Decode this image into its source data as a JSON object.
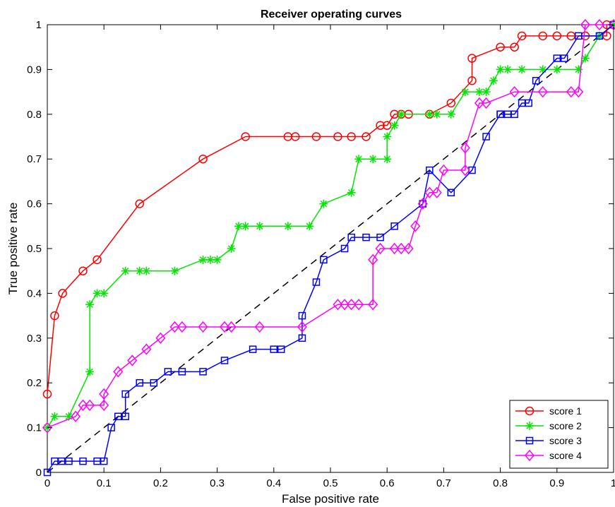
{
  "chart_data": {
    "type": "line",
    "title": "Receiver operating curves",
    "xlabel": "False positive rate",
    "ylabel": "True positive rate",
    "xlim": [
      0,
      1
    ],
    "ylim": [
      0,
      1
    ],
    "xticks": [
      "0",
      "0.1",
      "0.2",
      "0.3",
      "0.4",
      "0.5",
      "0.6",
      "0.7",
      "0.8",
      "0.9",
      "1"
    ],
    "yticks": [
      "0",
      "0.1",
      "0.2",
      "0.3",
      "0.4",
      "0.5",
      "0.6",
      "0.7",
      "0.8",
      "0.9",
      "1"
    ],
    "grid": false,
    "legend_position": "bottom-right",
    "reference_line": {
      "style": "dashed",
      "color": "#000000",
      "x": [
        0,
        1
      ],
      "y": [
        0,
        1
      ]
    },
    "series": [
      {
        "name": "score 1",
        "color": "#ff0000",
        "marker": "circle",
        "x": [
          0,
          0.013,
          0.027,
          0.063,
          0.088,
          0.163,
          0.275,
          0.35,
          0.425,
          0.438,
          0.475,
          0.513,
          0.537,
          0.563,
          0.588,
          0.6,
          0.613,
          0.625,
          0.638,
          0.675,
          0.713,
          0.75,
          0.75,
          0.8,
          0.825,
          0.838,
          0.875,
          0.9,
          0.925,
          0.95,
          0.988,
          0.988,
          1
        ],
        "y": [
          0.175,
          0.35,
          0.4,
          0.45,
          0.475,
          0.6,
          0.7,
          0.75,
          0.75,
          0.75,
          0.75,
          0.75,
          0.75,
          0.75,
          0.775,
          0.775,
          0.8,
          0.8,
          0.8,
          0.8,
          0.825,
          0.875,
          0.925,
          0.95,
          0.95,
          0.975,
          0.975,
          0.975,
          0.975,
          0.975,
          0.975,
          1,
          1
        ]
      },
      {
        "name": "score 2",
        "color": "#00e600",
        "marker": "asterisk",
        "x": [
          0,
          0.013,
          0.038,
          0.075,
          0.075,
          0.088,
          0.1,
          0.138,
          0.163,
          0.175,
          0.225,
          0.275,
          0.288,
          0.3,
          0.325,
          0.338,
          0.35,
          0.375,
          0.425,
          0.463,
          0.488,
          0.537,
          0.55,
          0.575,
          0.6,
          0.6,
          0.613,
          0.625,
          0.675,
          0.688,
          0.713,
          0.738,
          0.763,
          0.775,
          0.788,
          0.8,
          0.813,
          0.838,
          0.875,
          0.9,
          0.938,
          0.95,
          0.975,
          1
        ],
        "y": [
          0.1,
          0.125,
          0.125,
          0.225,
          0.375,
          0.4,
          0.4,
          0.45,
          0.45,
          0.45,
          0.45,
          0.475,
          0.475,
          0.475,
          0.5,
          0.55,
          0.55,
          0.55,
          0.55,
          0.55,
          0.6,
          0.625,
          0.7,
          0.7,
          0.7,
          0.75,
          0.775,
          0.8,
          0.8,
          0.8,
          0.8,
          0.85,
          0.85,
          0.85,
          0.875,
          0.9,
          0.9,
          0.9,
          0.9,
          0.9,
          0.9,
          0.925,
          0.975,
          1
        ]
      },
      {
        "name": "score 3",
        "color": "#0000ff",
        "marker": "square",
        "x": [
          0,
          0.013,
          0.025,
          0.038,
          0.063,
          0.088,
          0.1,
          0.113,
          0.125,
          0.138,
          0.138,
          0.163,
          0.188,
          0.213,
          0.238,
          0.275,
          0.313,
          0.363,
          0.4,
          0.413,
          0.45,
          0.45,
          0.475,
          0.488,
          0.525,
          0.537,
          0.563,
          0.588,
          0.613,
          0.663,
          0.675,
          0.713,
          0.75,
          0.775,
          0.8,
          0.8,
          0.813,
          0.825,
          0.838,
          0.85,
          0.863,
          0.9,
          0.913,
          0.938,
          0.975,
          1
        ],
        "y": [
          0,
          0.025,
          0.025,
          0.025,
          0.025,
          0.025,
          0.025,
          0.1,
          0.125,
          0.125,
          0.175,
          0.2,
          0.2,
          0.225,
          0.225,
          0.225,
          0.25,
          0.275,
          0.275,
          0.275,
          0.3,
          0.35,
          0.425,
          0.475,
          0.5,
          0.525,
          0.525,
          0.525,
          0.55,
          0.6,
          0.675,
          0.625,
          0.675,
          0.75,
          0.8,
          0.8,
          0.8,
          0.8,
          0.825,
          0.825,
          0.875,
          0.925,
          0.925,
          0.975,
          0.975,
          1
        ]
      },
      {
        "name": "score 4",
        "color": "#ff00ff",
        "marker": "diamond",
        "x": [
          0,
          0.05,
          0.063,
          0.075,
          0.1,
          0.1,
          0.125,
          0.15,
          0.175,
          0.2,
          0.225,
          0.238,
          0.275,
          0.313,
          0.325,
          0.375,
          0.45,
          0.513,
          0.525,
          0.537,
          0.55,
          0.575,
          0.575,
          0.588,
          0.613,
          0.625,
          0.638,
          0.65,
          0.663,
          0.663,
          0.675,
          0.688,
          0.7,
          0.738,
          0.738,
          0.763,
          0.775,
          0.825,
          0.875,
          0.925,
          0.938,
          0.95,
          0.975,
          1
        ],
        "y": [
          0.1,
          0.125,
          0.15,
          0.15,
          0.15,
          0.175,
          0.225,
          0.25,
          0.275,
          0.3,
          0.325,
          0.325,
          0.325,
          0.325,
          0.325,
          0.325,
          0.325,
          0.375,
          0.375,
          0.375,
          0.375,
          0.375,
          0.475,
          0.5,
          0.5,
          0.5,
          0.5,
          0.55,
          0.6,
          0.6,
          0.625,
          0.625,
          0.675,
          0.675,
          0.725,
          0.825,
          0.825,
          0.85,
          0.85,
          0.85,
          0.85,
          1,
          1,
          1
        ]
      }
    ]
  }
}
